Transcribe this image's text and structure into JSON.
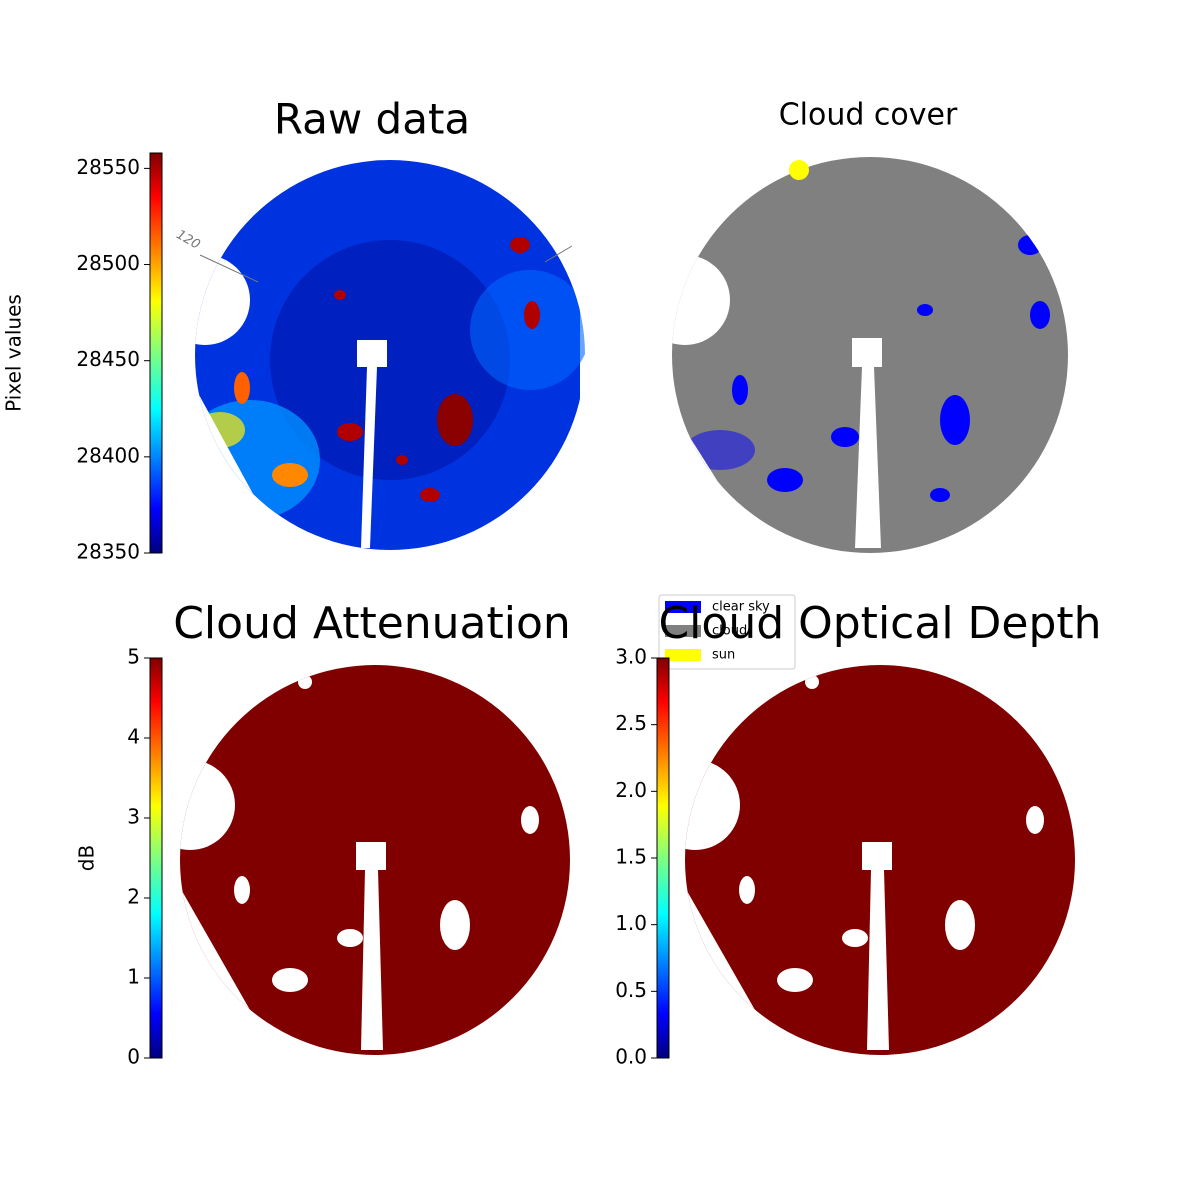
{
  "chart_data": [
    {
      "type": "image",
      "title": "Raw data",
      "colormap": "jet",
      "ylabel": "Pixel values",
      "ylim": [
        28350,
        28558
      ],
      "yticks": [
        28350,
        28400,
        28450,
        28500,
        28550
      ],
      "annotations": [
        "120"
      ]
    },
    {
      "type": "image",
      "title": "Cloud cover",
      "legend": [
        {
          "name": "clear sky",
          "color": "#0000ff"
        },
        {
          "name": "cloud",
          "color": "#808080"
        },
        {
          "name": "sun",
          "color": "#ffff00"
        }
      ]
    },
    {
      "type": "image",
      "title": "Cloud Attenuation",
      "colormap": "jet",
      "ylabel": "dB",
      "ylim": [
        0,
        5
      ],
      "yticks": [
        0,
        1,
        2,
        3,
        4,
        5
      ]
    },
    {
      "type": "image",
      "title": "Cloud Optical Depth",
      "colormap": "jet",
      "ylim": [
        0,
        3
      ],
      "yticks": [
        {
          "value": 0,
          "label": "0.0"
        },
        {
          "value": 0.5,
          "label": "0.5"
        },
        {
          "value": 1,
          "label": "1.0"
        },
        {
          "value": 1.5,
          "label": "1.5"
        },
        {
          "value": 2,
          "label": "2.0"
        },
        {
          "value": 2.5,
          "label": "2.5"
        },
        {
          "value": 3,
          "label": "3.0"
        }
      ]
    }
  ]
}
